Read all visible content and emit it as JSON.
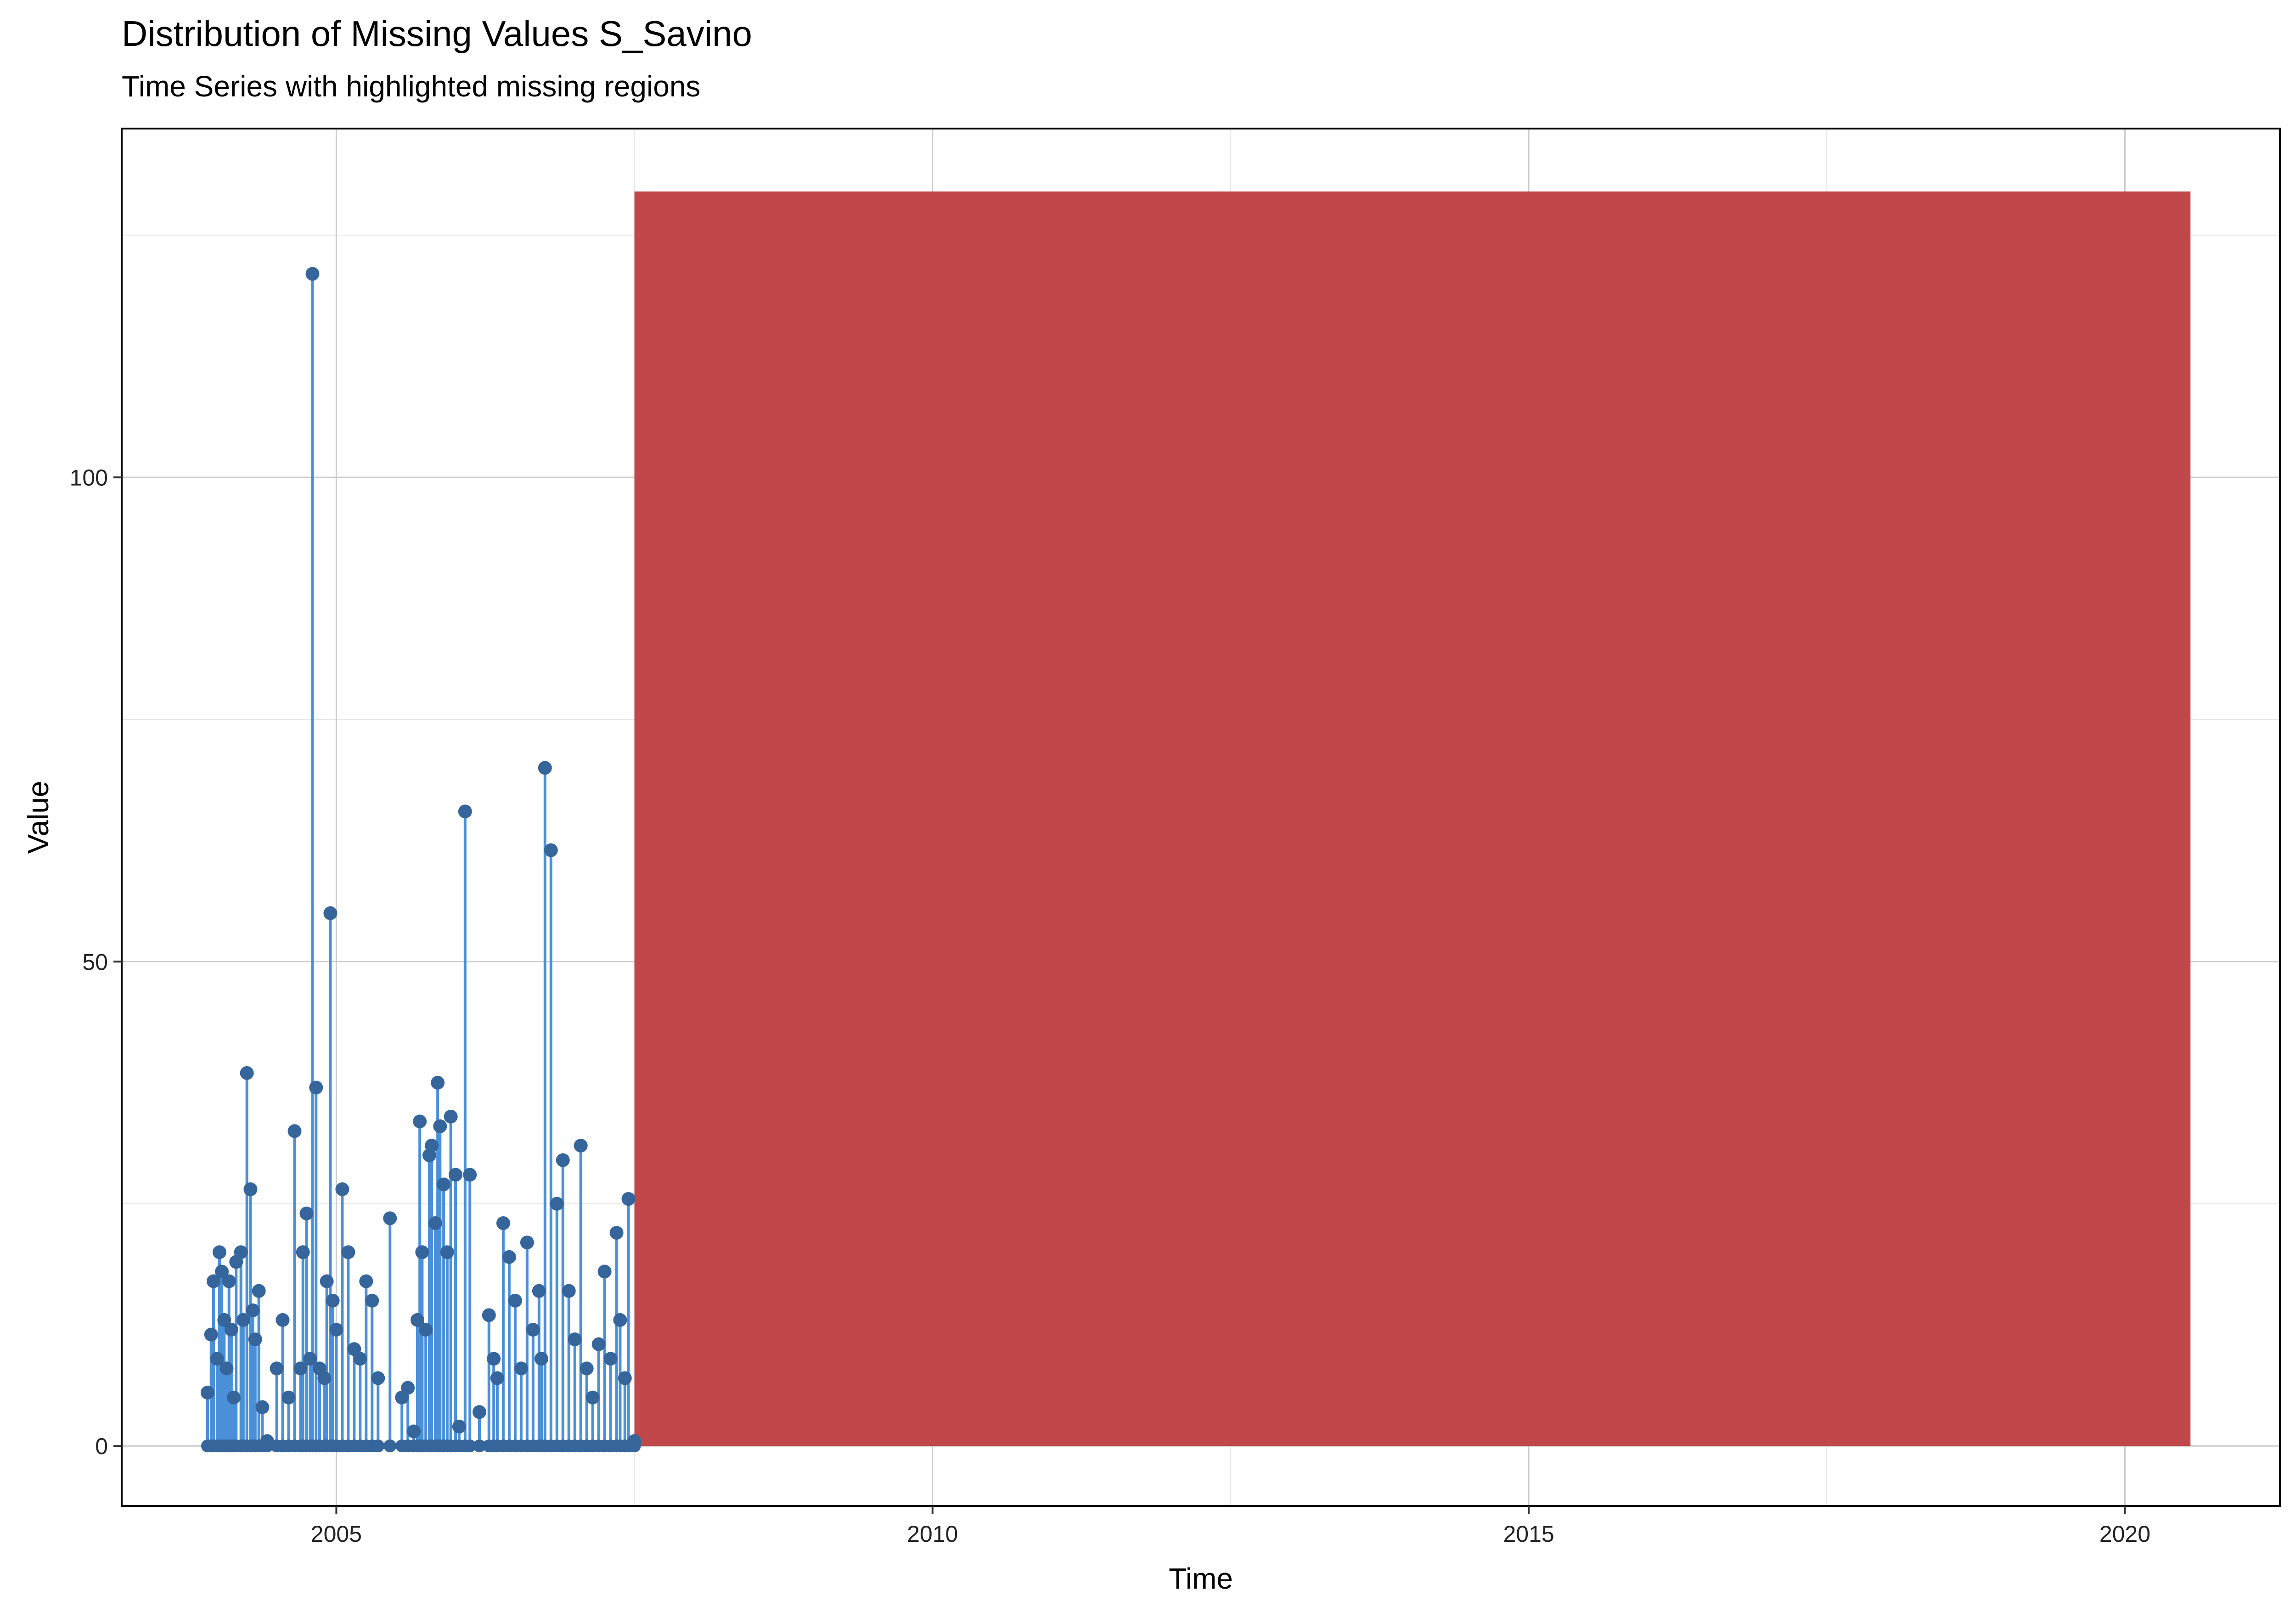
{
  "chart_data": {
    "type": "line",
    "title": "Distribution of Missing Values S_Savino",
    "subtitle": "Time Series with highlighted missing regions",
    "xlabel": "Time",
    "ylabel": "Value",
    "xlim": [
      2003.2,
      2021.3
    ],
    "ylim": [
      -6.2,
      136
    ],
    "x_ticks": [
      2005,
      2010,
      2015,
      2020
    ],
    "y_ticks": [
      0,
      50,
      100
    ],
    "grid": true,
    "legend": "none",
    "colors": {
      "line": "#4A90D9",
      "point": "#35659A",
      "missing_region": "#C0474A",
      "grid_major": "#CCCCCC",
      "grid_minor": "#E6E6E6",
      "panel_border": "#000000"
    },
    "missing_regions": [
      {
        "x_start": 2007.5,
        "x_end": 2020.55,
        "y_min": 0,
        "y_max": 129.5
      }
    ],
    "series": [
      {
        "x": [
          2003.92,
          2003.95,
          2003.97,
          2004.0,
          2004.02,
          2004.04,
          2004.06,
          2004.08,
          2004.1,
          2004.12,
          2004.14,
          2004.16,
          2004.2,
          2004.22,
          2004.25,
          2004.28,
          2004.3,
          2004.32,
          2004.35,
          2004.38,
          2004.42,
          2004.5,
          2004.55,
          2004.6,
          2004.65,
          2004.7,
          2004.72,
          2004.75,
          2004.78,
          2004.8,
          2004.83,
          2004.86,
          2004.9,
          2004.92,
          2004.95,
          2004.97,
          2005.0,
          2005.05,
          2005.1,
          2005.15,
          2005.2,
          2005.25,
          2005.3,
          2005.35,
          2005.45,
          2005.55,
          2005.6,
          2005.65,
          2005.68,
          2005.7,
          2005.72,
          2005.75,
          2005.78,
          2005.8,
          2005.83,
          2005.85,
          2005.87,
          2005.9,
          2005.93,
          2005.96,
          2006.0,
          2006.03,
          2006.08,
          2006.12,
          2006.2,
          2006.28,
          2006.32,
          2006.35,
          2006.4,
          2006.45,
          2006.5,
          2006.55,
          2006.6,
          2006.65,
          2006.7,
          2006.72,
          2006.75,
          2006.8,
          2006.85,
          2006.9,
          2006.95,
          2007.0,
          2007.05,
          2007.1,
          2007.15,
          2007.2,
          2007.25,
          2007.3,
          2007.35,
          2007.38,
          2007.42,
          2007.45,
          2007.5
        ],
        "y": [
          5.5,
          11.5,
          17,
          9,
          20,
          18,
          13,
          8,
          17,
          12,
          5,
          19,
          20,
          13,
          38.5,
          26.5,
          14,
          11,
          16,
          4,
          0.5,
          8,
          13,
          5,
          32.5,
          8,
          20,
          24,
          9,
          121,
          37,
          8,
          7,
          17,
          55,
          15,
          12,
          26.5,
          20,
          10,
          9,
          17,
          15,
          7,
          23.5,
          5,
          6,
          1.5,
          13,
          33.5,
          20,
          12,
          30,
          31,
          23,
          37.5,
          33,
          27,
          20,
          34,
          28,
          2,
          65.5,
          28,
          3.5,
          13.5,
          9,
          7,
          23,
          19.5,
          15,
          8,
          21,
          12,
          16,
          9,
          70,
          61.5,
          25,
          29.5,
          16,
          11,
          31,
          8,
          5,
          10.5,
          18,
          9,
          22,
          13,
          7,
          25.5,
          0.5
        ]
      }
    ]
  }
}
